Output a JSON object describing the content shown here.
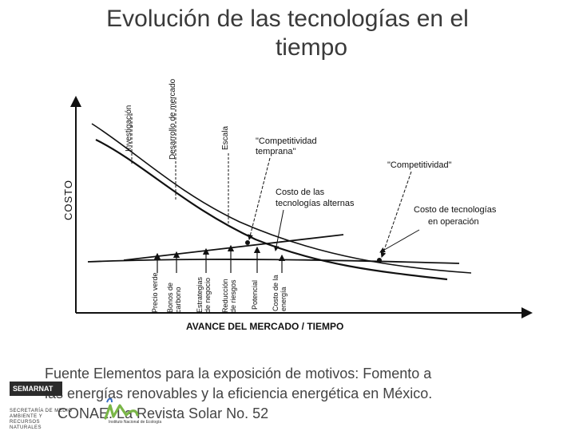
{
  "title": {
    "line1": "Evolución de las tecnologías en el",
    "line2": "tiempo"
  },
  "chart_data": {
    "type": "diagram",
    "ylabel": "COSTO",
    "xlabel": "AVANCE DEL MERCADO / TIEMPO",
    "top_labels": [
      "Investigación",
      "Desarrollo de mercado",
      "Escala"
    ],
    "annotations": {
      "competitividad_temprana": [
        "\"Competitividad",
        "temprana\""
      ],
      "competitividad": "\"Competitividad\"",
      "costo_alternas": [
        "Costo de las",
        "tecnologías alternas"
      ],
      "costo_operacion": [
        "Costo de tecnologías",
        "en operación"
      ]
    },
    "bottom_labels": [
      [
        "Precio verde"
      ],
      [
        "Bonos de",
        "carbono"
      ],
      [
        "Estrategias",
        "de negocio"
      ],
      [
        "Reducción",
        "de riesgos"
      ],
      [
        "Potencial"
      ],
      [
        "Costo de la",
        "energía"
      ]
    ]
  },
  "source": {
    "line1": "Fuente  Elementos para la exposición de motivos: Fomento a",
    "line2": "las energías renovables y la eficiencia energética en México.",
    "line3": "CONAE. La Revista Solar No. 52"
  },
  "logos": {
    "semarnat": "SEMARNAT",
    "semarnat_sub": "SECRETARÍA DE MEDIO AMBIENTE Y RECURSOS NATURALES",
    "ine_mark": "ine",
    "ine_text": "Instituto Nacional de Ecología"
  },
  "colors": {
    "ink": "#111111",
    "title": "#3a3a3a",
    "ine_green": "#7ab648",
    "ine_blue": "#3a6fc4"
  }
}
